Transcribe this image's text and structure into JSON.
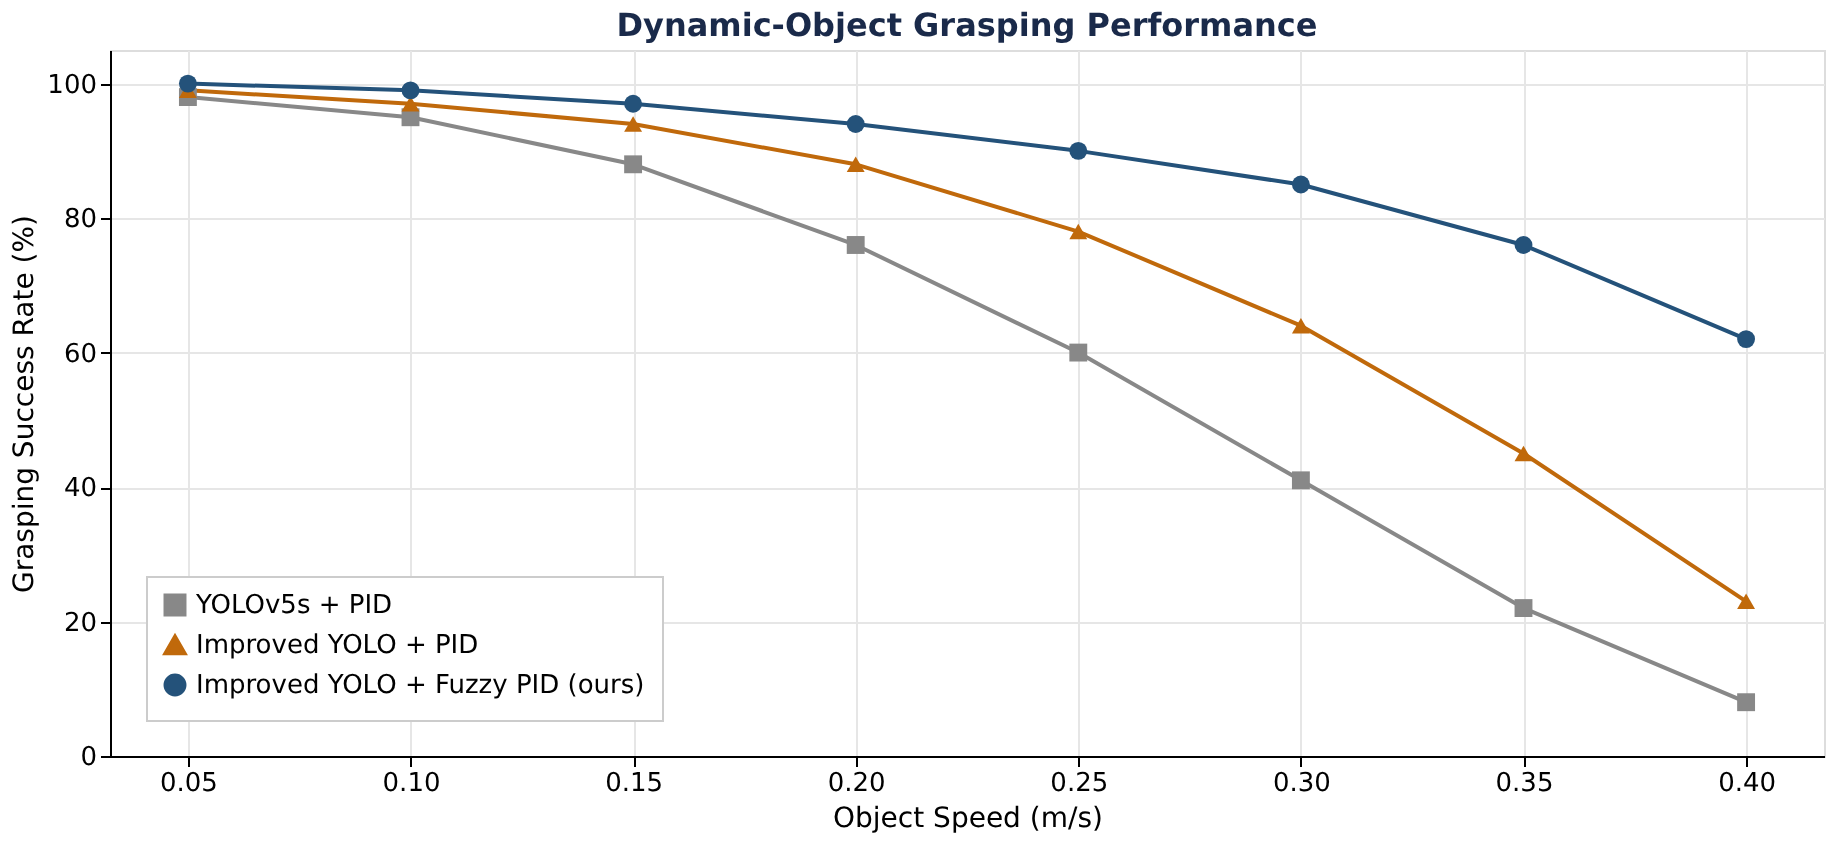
{
  "chart_data": {
    "type": "line",
    "title": "Dynamic-Object Grasping Performance",
    "xlabel": "Object Speed (m/s)",
    "ylabel": "Grasping Success Rate (%)",
    "x": [
      0.05,
      0.1,
      0.15,
      0.2,
      0.25,
      0.3,
      0.35,
      0.4
    ],
    "series": [
      {
        "name": "YOLOv5s + PID",
        "color": "#888888",
        "marker": "square",
        "values": [
          98,
          95,
          88,
          76,
          60,
          41,
          22,
          8
        ]
      },
      {
        "name": "Improved YOLO + PID",
        "color": "#c0690b",
        "marker": "triangle",
        "values": [
          99,
          97,
          94,
          88,
          78,
          64,
          45,
          23
        ]
      },
      {
        "name": "Improved YOLO + Fuzzy PID (ours)",
        "color": "#24527a",
        "marker": "circle",
        "values": [
          100,
          99,
          97,
          94,
          90,
          85,
          76,
          62
        ]
      }
    ],
    "xlim": [
      0.0325,
      0.4175
    ],
    "xticks": [
      {
        "value": 0.05,
        "label": "0.05"
      },
      {
        "value": 0.1,
        "label": "0.10"
      },
      {
        "value": 0.15,
        "label": "0.15"
      },
      {
        "value": 0.2,
        "label": "0.20"
      },
      {
        "value": 0.25,
        "label": "0.25"
      },
      {
        "value": 0.3,
        "label": "0.30"
      },
      {
        "value": 0.35,
        "label": "0.35"
      },
      {
        "value": 0.4,
        "label": "0.40"
      }
    ],
    "ylim": [
      0,
      105
    ],
    "yticks": [
      0,
      20,
      40,
      60,
      80,
      100
    ],
    "grid": true,
    "legend": "bottom left",
    "line_style": "solid"
  }
}
